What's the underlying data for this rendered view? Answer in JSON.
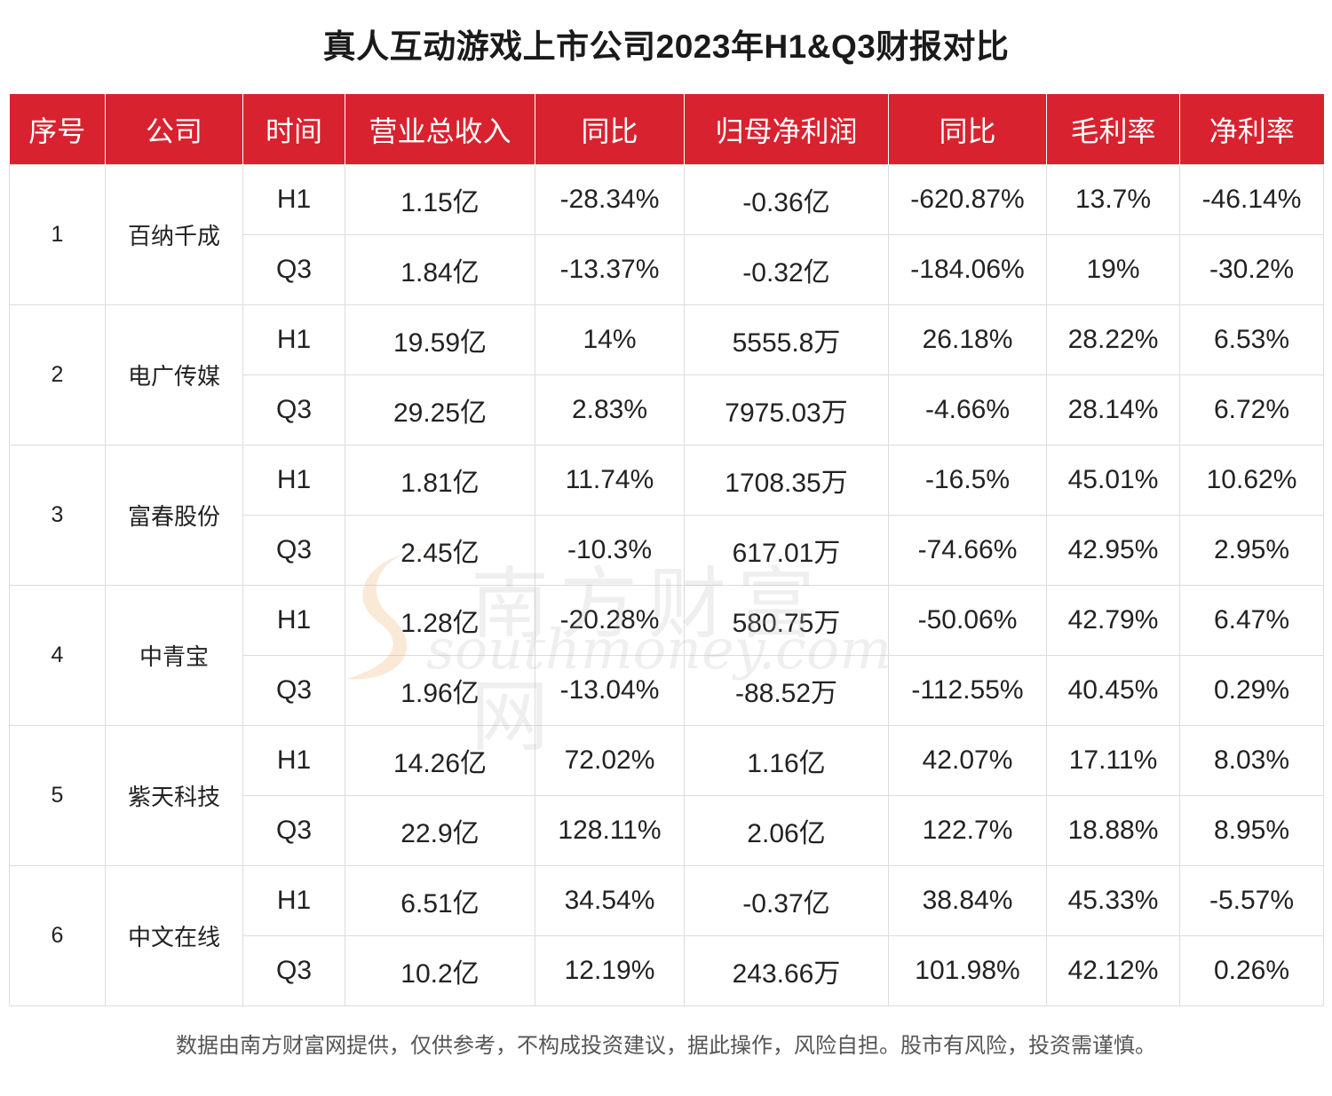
{
  "title": "真人互动游戏上市公司2023年H1&Q3财报对比",
  "headers": [
    "序号",
    "公司",
    "时间",
    "营业总收入",
    "同比",
    "归母净利润",
    "同比",
    "毛利率",
    "净利率"
  ],
  "companies": [
    {
      "idx": "1",
      "name": "百纳千成",
      "rows": [
        [
          "H1",
          "1.15亿",
          "-28.34%",
          "-0.36亿",
          "-620.87%",
          "13.7%",
          "-46.14%"
        ],
        [
          "Q3",
          "1.84亿",
          "-13.37%",
          "-0.32亿",
          "-184.06%",
          "19%",
          "-30.2%"
        ]
      ]
    },
    {
      "idx": "2",
      "name": "电广传媒",
      "rows": [
        [
          "H1",
          "19.59亿",
          "14%",
          "5555.8万",
          "26.18%",
          "28.22%",
          "6.53%"
        ],
        [
          "Q3",
          "29.25亿",
          "2.83%",
          "7975.03万",
          "-4.66%",
          "28.14%",
          "6.72%"
        ]
      ]
    },
    {
      "idx": "3",
      "name": "富春股份",
      "rows": [
        [
          "H1",
          "1.81亿",
          "11.74%",
          "1708.35万",
          "-16.5%",
          "45.01%",
          "10.62%"
        ],
        [
          "Q3",
          "2.45亿",
          "-10.3%",
          "617.01万",
          "-74.66%",
          "42.95%",
          "2.95%"
        ]
      ]
    },
    {
      "idx": "4",
      "name": "中青宝",
      "rows": [
        [
          "H1",
          "1.28亿",
          "-20.28%",
          "580.75万",
          "-50.06%",
          "42.79%",
          "6.47%"
        ],
        [
          "Q3",
          "1.96亿",
          "-13.04%",
          "-88.52万",
          "-112.55%",
          "40.45%",
          "0.29%"
        ]
      ]
    },
    {
      "idx": "5",
      "name": "紫天科技",
      "rows": [
        [
          "H1",
          "14.26亿",
          "72.02%",
          "1.16亿",
          "42.07%",
          "17.11%",
          "8.03%"
        ],
        [
          "Q3",
          "22.9亿",
          "128.11%",
          "2.06亿",
          "122.7%",
          "18.88%",
          "8.95%"
        ]
      ]
    },
    {
      "idx": "6",
      "name": "中文在线",
      "rows": [
        [
          "H1",
          "6.51亿",
          "34.54%",
          "-0.37亿",
          "38.84%",
          "45.33%",
          "-5.57%"
        ],
        [
          "Q3",
          "10.2亿",
          "12.19%",
          "243.66万",
          "101.98%",
          "42.12%",
          "0.26%"
        ]
      ]
    }
  ],
  "watermark": {
    "cn": "南方财富网",
    "en": "southmoney.com"
  },
  "footer": "数据由南方财富网提供，仅供参考，不构成投资建议，据此操作，风险自担。股市有风险，投资需谨慎。"
}
